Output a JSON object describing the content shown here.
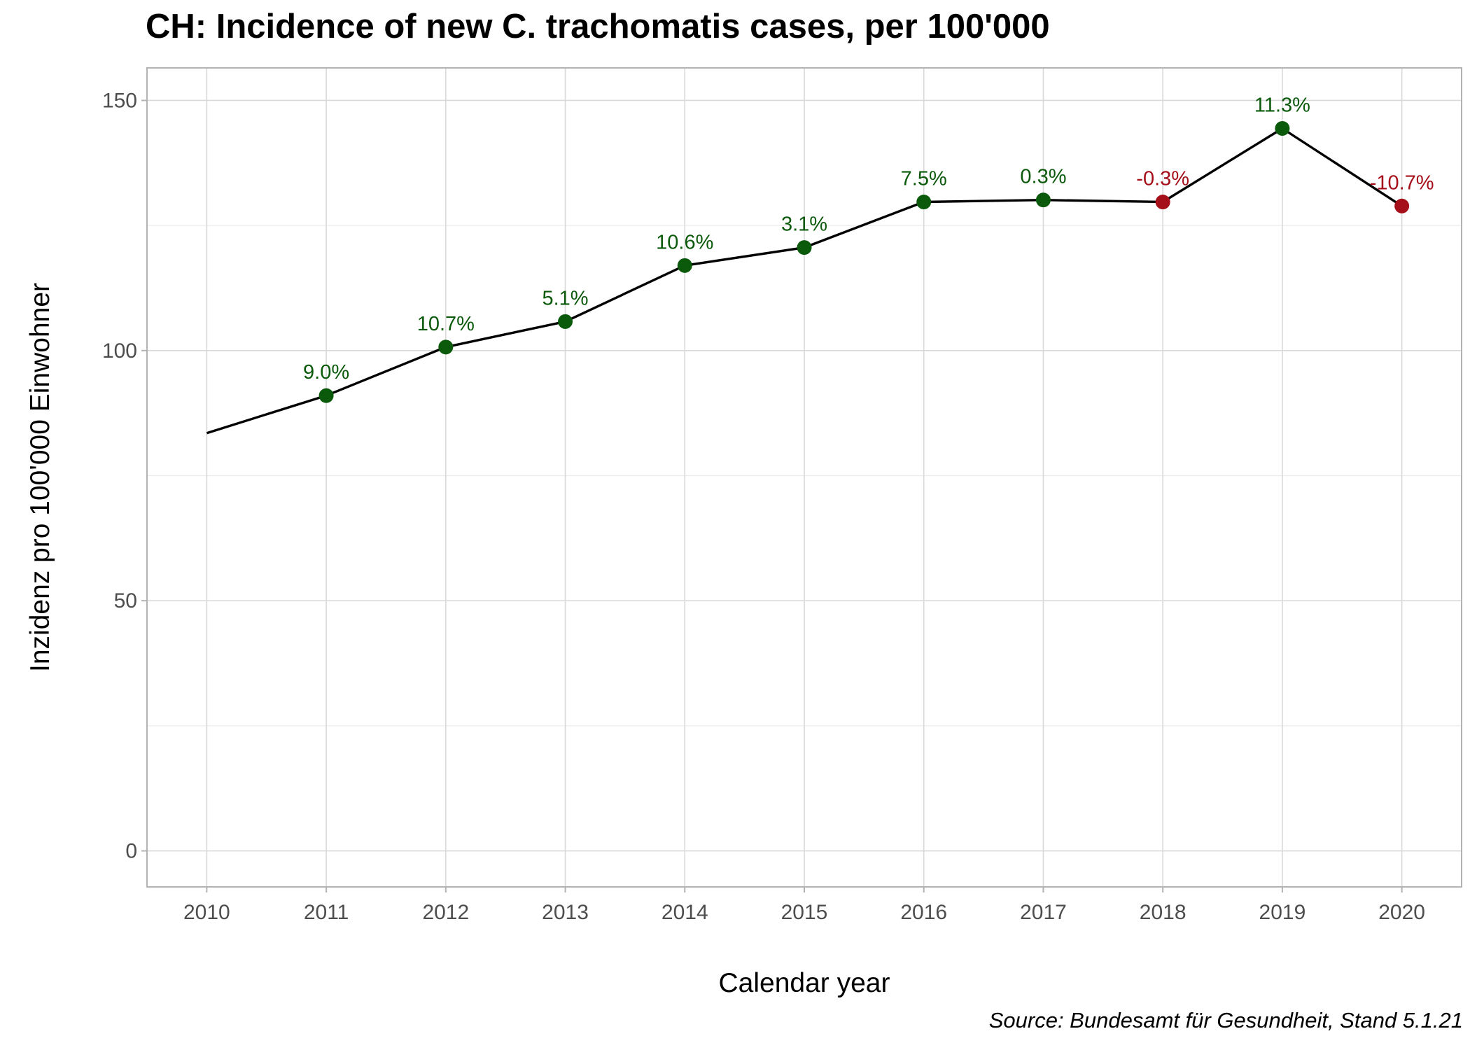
{
  "chart_data": {
    "type": "line",
    "title": "CH: Incidence of new C. trachomatis cases, per 100'000",
    "caption": "Source: Bundesamt für Gesundheit, Stand 5.1.21",
    "xlabel": "Calendar year",
    "ylabel": "Inzidenz pro 100'000 Einwohner",
    "x": [
      2010,
      2011,
      2012,
      2013,
      2014,
      2015,
      2016,
      2017,
      2018,
      2019,
      2020
    ],
    "y": [
      83.5,
      91.0,
      100.7,
      105.8,
      117.0,
      120.6,
      129.7,
      130.1,
      129.7,
      144.4,
      128.9
    ],
    "change_labels": [
      null,
      "9.0%",
      "10.7%",
      "5.1%",
      "10.6%",
      "3.1%",
      "7.5%",
      "0.3%",
      "-0.3%",
      "11.3%",
      "-10.7%"
    ],
    "xlim": [
      2009.5,
      2020.5
    ],
    "ylim": [
      -7.2,
      156.5
    ],
    "yticks": [
      0,
      50,
      100,
      150
    ],
    "xticks": [
      2010,
      2011,
      2012,
      2013,
      2014,
      2015,
      2016,
      2017,
      2018,
      2019,
      2020
    ],
    "grid": true,
    "legend": "none",
    "colors": {
      "line": "#000000",
      "increase": "#0b5a0b",
      "decrease": "#a50f1a",
      "grid_major": "#d9d9d9",
      "grid_minor": "#ececec",
      "panel_border": "#b3b3b3"
    }
  }
}
